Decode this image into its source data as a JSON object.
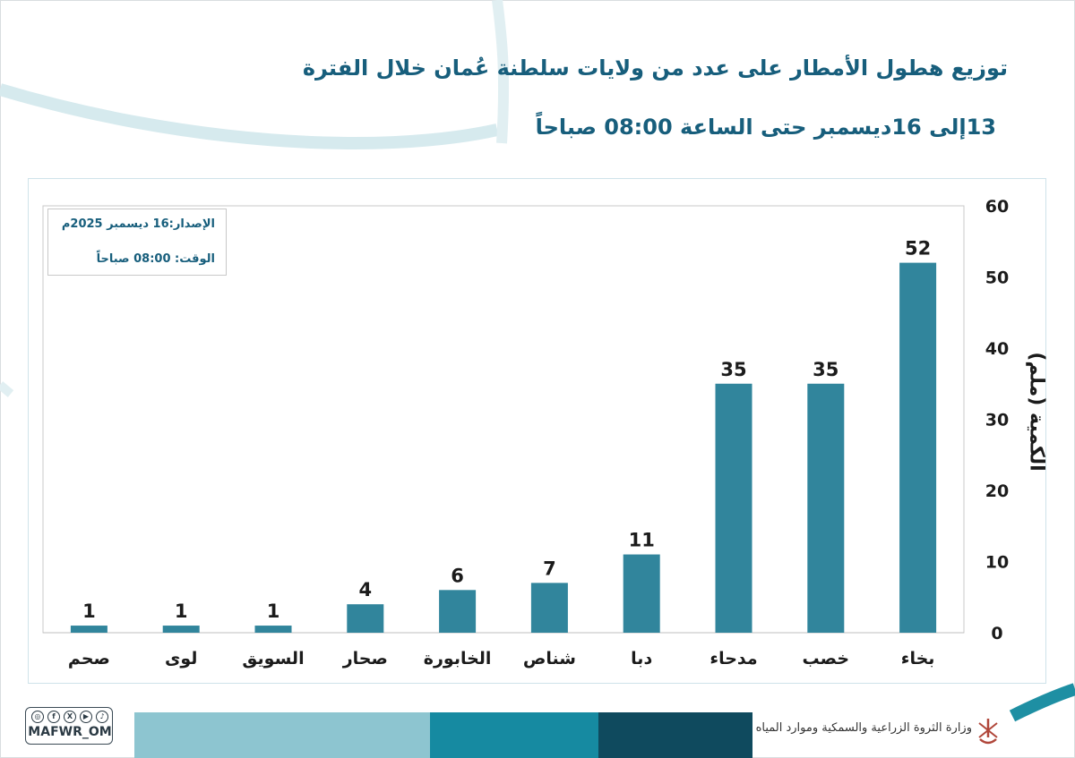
{
  "header": {
    "title": "توزيع هطول الأمطار على عدد من ولايات سلطنة عُمان خلال الفترة",
    "subtitle": "13إلى 16ديسمبر حتى الساعة 08:00 صباحاً"
  },
  "info_box": {
    "issue": "الإصدار:16 ديسمبر 2025م",
    "time": "الوقت: 08:00 صباحاً"
  },
  "colors": {
    "bar": "#31859c",
    "title": "#175e7c",
    "footer_light": "#8dc5d0",
    "footer_mid": "#168aa1",
    "footer_dark": "#0f4a5e"
  },
  "chart_data": {
    "type": "bar",
    "categories": [
      "بخاء",
      "خصب",
      "مدحاء",
      "دبا",
      "شناص",
      "الخابورة",
      "صحار",
      "السويق",
      "لوى",
      "صحم"
    ],
    "values": [
      52,
      35,
      35,
      11,
      7,
      6,
      4,
      1,
      1,
      1
    ],
    "ylabel": "الكمية (ملم)",
    "ylim": [
      0,
      60
    ],
    "yticks": [
      0,
      10,
      20,
      30,
      40,
      50,
      60
    ],
    "y_axis_side": "right",
    "grid": false,
    "data_labels": true
  },
  "footer": {
    "ministry": "وزارة الثروة الزراعية والسمكية وموارد المياه",
    "handle": "MAFWR_OM",
    "social_icons": [
      "instagram-icon",
      "facebook-icon",
      "x-icon",
      "youtube-icon",
      "tiktok-icon"
    ]
  }
}
